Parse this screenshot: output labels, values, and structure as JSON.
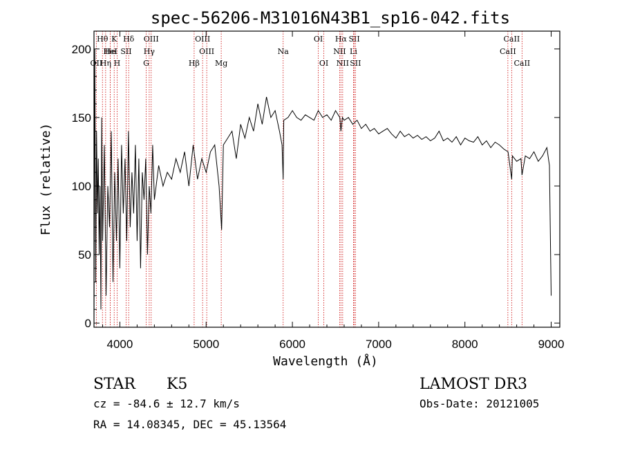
{
  "chart_data": {
    "type": "line",
    "title": "spec-56206-M31016N43B1_sp16-042.fits",
    "xlabel": "Wavelength (Å)",
    "ylabel": "Flux (relative)",
    "xlim": [
      3700,
      9100
    ],
    "ylim": [
      -3,
      213
    ],
    "xticks": [
      4000,
      5000,
      6000,
      7000,
      8000,
      9000
    ],
    "xtick_labels": [
      "4000",
      "5000",
      "6000",
      "7000",
      "8000",
      "9000"
    ],
    "yticks": [
      0,
      50,
      100,
      150,
      200
    ],
    "ytick_labels": [
      "0",
      "50",
      "100",
      "150",
      "200"
    ],
    "line_color": "#000000",
    "marker_color": "#cc0000",
    "series": [
      {
        "name": "flux",
        "x": [
          3700,
          3710,
          3720,
          3730,
          3740,
          3750,
          3760,
          3770,
          3780,
          3790,
          3800,
          3820,
          3840,
          3860,
          3880,
          3900,
          3920,
          3940,
          3960,
          3980,
          4000,
          4020,
          4040,
          4060,
          4080,
          4100,
          4120,
          4140,
          4160,
          4180,
          4200,
          4220,
          4240,
          4260,
          4280,
          4300,
          4320,
          4340,
          4360,
          4380,
          4400,
          4450,
          4500,
          4550,
          4600,
          4650,
          4700,
          4750,
          4800,
          4850,
          4900,
          4950,
          5000,
          5050,
          5100,
          5150,
          5180,
          5200,
          5250,
          5300,
          5350,
          5400,
          5450,
          5500,
          5550,
          5600,
          5650,
          5700,
          5750,
          5800,
          5850,
          5880,
          5893,
          5900,
          5950,
          6000,
          6050,
          6100,
          6150,
          6200,
          6250,
          6300,
          6350,
          6400,
          6450,
          6500,
          6550,
          6563,
          6580,
          6600,
          6650,
          6700,
          6750,
          6800,
          6850,
          6900,
          6950,
          7000,
          7050,
          7100,
          7150,
          7200,
          7250,
          7300,
          7350,
          7400,
          7450,
          7500,
          7550,
          7600,
          7650,
          7700,
          7750,
          7800,
          7850,
          7900,
          7950,
          8000,
          8050,
          8100,
          8150,
          8200,
          8250,
          8300,
          8350,
          8400,
          8450,
          8500,
          8542,
          8550,
          8600,
          8650,
          8662,
          8700,
          8750,
          8800,
          8850,
          8900,
          8950,
          8980,
          9000
        ],
        "y": [
          0,
          200,
          30,
          140,
          80,
          120,
          50,
          100,
          10,
          150,
          60,
          130,
          20,
          100,
          70,
          140,
          30,
          110,
          60,
          120,
          40,
          130,
          80,
          120,
          60,
          140,
          70,
          110,
          80,
          130,
          60,
          120,
          40,
          110,
          90,
          120,
          50,
          100,
          80,
          130,
          90,
          115,
          100,
          110,
          105,
          120,
          110,
          125,
          100,
          130,
          105,
          120,
          110,
          125,
          130,
          100,
          68,
          130,
          135,
          140,
          120,
          145,
          135,
          150,
          140,
          160,
          145,
          165,
          150,
          155,
          140,
          130,
          105,
          148,
          150,
          155,
          150,
          148,
          152,
          150,
          148,
          155,
          150,
          152,
          148,
          155,
          150,
          140,
          150,
          148,
          150,
          145,
          148,
          142,
          145,
          140,
          142,
          138,
          140,
          142,
          138,
          135,
          140,
          136,
          138,
          135,
          137,
          134,
          136,
          133,
          135,
          140,
          133,
          135,
          132,
          136,
          130,
          135,
          133,
          132,
          136,
          130,
          133,
          128,
          132,
          130,
          127,
          125,
          105,
          122,
          118,
          120,
          108,
          122,
          120,
          125,
          118,
          122,
          128,
          115,
          20
        ]
      }
    ],
    "line_markers": [
      {
        "label": "Hθ",
        "wavelength": 3798,
        "row": 0
      },
      {
        "label": "K",
        "wavelength": 3934,
        "row": 0
      },
      {
        "label": "Hδ",
        "wavelength": 4102,
        "row": 0
      },
      {
        "label": "OIII",
        "wavelength": 4363,
        "row": 0
      },
      {
        "label": "OIII",
        "wavelength": 4959,
        "row": 0
      },
      {
        "label": "OI",
        "wavelength": 6300,
        "row": 0
      },
      {
        "label": "Hα",
        "wavelength": 6563,
        "row": 0
      },
      {
        "label": "SII",
        "wavelength": 6717,
        "row": 0
      },
      {
        "label": "CaII",
        "wavelength": 8542,
        "row": 0
      },
      {
        "label": "He",
        "wavelength": 3889,
        "row": 1
      },
      {
        "label": "HeI",
        "wavelength": 3889,
        "row": 1
      },
      {
        "label": "SII",
        "wavelength": 4072,
        "row": 1
      },
      {
        "label": "Hγ",
        "wavelength": 4340,
        "row": 1
      },
      {
        "label": "OIII",
        "wavelength": 5007,
        "row": 1
      },
      {
        "label": "Na",
        "wavelength": 5893,
        "row": 1
      },
      {
        "label": "NII",
        "wavelength": 6548,
        "row": 1
      },
      {
        "label": "Li",
        "wavelength": 6708,
        "row": 1
      },
      {
        "label": "CaII",
        "wavelength": 8498,
        "row": 1
      },
      {
        "label": "OII",
        "wavelength": 3727,
        "row": 2
      },
      {
        "label": "Hη",
        "wavelength": 3835,
        "row": 2
      },
      {
        "label": "H",
        "wavelength": 3968,
        "row": 2
      },
      {
        "label": "G",
        "wavelength": 4305,
        "row": 2
      },
      {
        "label": "Hβ",
        "wavelength": 4861,
        "row": 2
      },
      {
        "label": "Mg",
        "wavelength": 5175,
        "row": 2
      },
      {
        "label": "OI",
        "wavelength": 6364,
        "row": 2
      },
      {
        "label": "NII",
        "wavelength": 6583,
        "row": 2
      },
      {
        "label": "SII",
        "wavelength": 6731,
        "row": 2
      },
      {
        "label": "CaII",
        "wavelength": 8662,
        "row": 2
      }
    ]
  },
  "info": {
    "object_class": "STAR",
    "subclass": "K5",
    "survey": "LAMOST DR3",
    "cz": "cz = -84.6 ± 12.7 km/s",
    "obs_date": "Obs-Date: 20121005",
    "coords": "RA =  14.08345, DEC =  45.13564"
  }
}
